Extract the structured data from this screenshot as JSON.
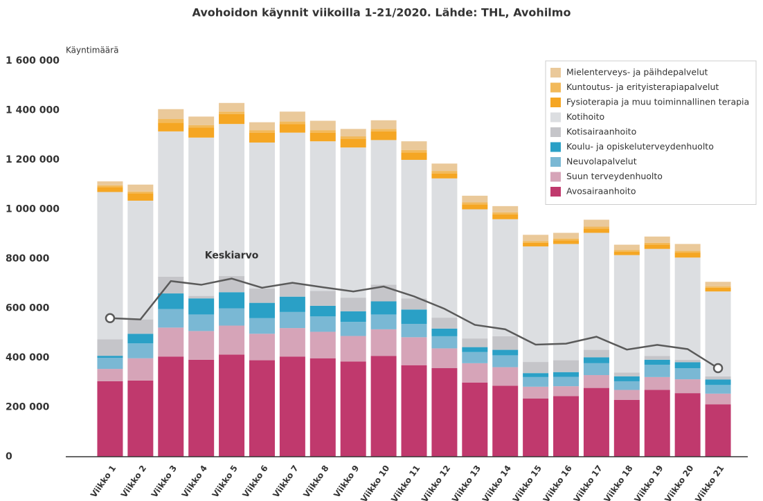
{
  "chart_data": {
    "type": "stacked_bar",
    "title": "Avohoidon käynnit viikoilla 1-21/2020. Lähde: THL, Avohilmo",
    "y_label": "Käyntimäärä",
    "categories": [
      "Viikko 1",
      "Viikko 2",
      "Viikko 3",
      "Viikko 4",
      "Viikko 5",
      "Viikko 6",
      "Viikko 7",
      "Viikko 8",
      "Viikko 9",
      "Viikko 10",
      "Viikko 11",
      "Viikko 12",
      "Viikko 13",
      "Viikko 14",
      "Viikko 15",
      "Viikko 16",
      "Viikko 17",
      "Viikko 18",
      "Viikko 19",
      "Viikko 20",
      "Viikko 21"
    ],
    "series": [
      {
        "name": "Avosairaanhoito",
        "color": "#c0396d",
        "values": [
          305000,
          308000,
          405000,
          392000,
          413000,
          390000,
          405000,
          398000,
          385000,
          407000,
          370000,
          358000,
          300000,
          287000,
          235000,
          245000,
          278000,
          230000,
          270000,
          257000,
          212000
        ]
      },
      {
        "name": "Suun terveydenhuolto",
        "color": "#d6a4b8",
        "values": [
          50000,
          90000,
          117000,
          116000,
          117000,
          107000,
          115000,
          107000,
          103000,
          108000,
          113000,
          80000,
          78000,
          75000,
          48000,
          40000,
          52000,
          40000,
          52000,
          56000,
          43000
        ]
      },
      {
        "name": "Neuvolapalvelut",
        "color": "#7ab8d4",
        "values": [
          45000,
          60000,
          75000,
          67000,
          70000,
          63000,
          65000,
          62000,
          57000,
          60000,
          54000,
          49000,
          45000,
          48000,
          39000,
          38000,
          48000,
          35000,
          50000,
          45000,
          35000
        ]
      },
      {
        "name": "Koulu- ja opiskeluterveydenhuolto",
        "color": "#2aa0c6",
        "values": [
          8000,
          39000,
          63000,
          65000,
          65000,
          62000,
          62000,
          43000,
          43000,
          53000,
          58000,
          31000,
          20000,
          22000,
          16000,
          19000,
          24000,
          20000,
          20000,
          24000,
          22000
        ]
      },
      {
        "name": "Kotisairaanhoito",
        "color": "#c5c5c9",
        "values": [
          67000,
          58000,
          68000,
          10000,
          65000,
          58000,
          53000,
          60000,
          55000,
          67000,
          45000,
          44000,
          35000,
          55000,
          45000,
          48000,
          30000,
          15000,
          15000,
          10000,
          13000
        ]
      },
      {
        "name": "Kotihoito",
        "color": "#dcdee1",
        "values": [
          595000,
          480000,
          587000,
          640000,
          615000,
          590000,
          610000,
          605000,
          607000,
          585000,
          560000,
          563000,
          522000,
          473000,
          467000,
          470000,
          473000,
          475000,
          433000,
          413000,
          343000
        ]
      },
      {
        "name": "Fysioterapia ja muu toiminnallinen terapia",
        "color": "#f5a623",
        "values": [
          20000,
          30000,
          35000,
          40000,
          40000,
          40000,
          35000,
          35000,
          35000,
          35000,
          30000,
          20000,
          20000,
          20000,
          15000,
          15000,
          17000,
          13000,
          18000,
          20000,
          15000
        ]
      },
      {
        "name": "Kuntoutus- ja erityisterapiapalvelut",
        "color": "#f2b95a",
        "values": [
          7000,
          7000,
          15000,
          10000,
          10000,
          10000,
          10000,
          10000,
          10000,
          10000,
          10000,
          10000,
          8000,
          8000,
          7000,
          7000,
          8000,
          7000,
          7000,
          7000,
          5000
        ]
      },
      {
        "name": "Mielenterveys- ja päihdepalvelut",
        "color": "#eac99a",
        "values": [
          16000,
          28000,
          40000,
          35000,
          35000,
          32000,
          40000,
          38000,
          30000,
          35000,
          35000,
          30000,
          27000,
          25000,
          25000,
          23000,
          28000,
          22000,
          25000,
          28000,
          19000
        ]
      }
    ],
    "line": {
      "name": "Keskiarvo",
      "color": "#5a5a5a",
      "values": [
        560000,
        555000,
        710000,
        695000,
        720000,
        683000,
        703000,
        685000,
        668000,
        688000,
        648000,
        598000,
        533000,
        515000,
        453000,
        457000,
        485000,
        433000,
        452000,
        435000,
        358000
      ]
    },
    "ylim": [
      0,
      1600000
    ],
    "yticks": [
      0,
      {
        "value": 200000,
        "label": "200 000"
      },
      {
        "value": 400000,
        "label": "400 000"
      },
      {
        "value": 600000,
        "label": "600 000"
      },
      {
        "value": 800000,
        "label": "800 000"
      },
      {
        "value": 1000000,
        "label": "1 000 000"
      },
      {
        "value": 1200000,
        "label": "1 200 000"
      },
      {
        "value": 1400000,
        "label": "1 400 000"
      },
      {
        "value": 1600000,
        "label": "1 600 000"
      }
    ],
    "grid": false,
    "legend": "top-right"
  }
}
